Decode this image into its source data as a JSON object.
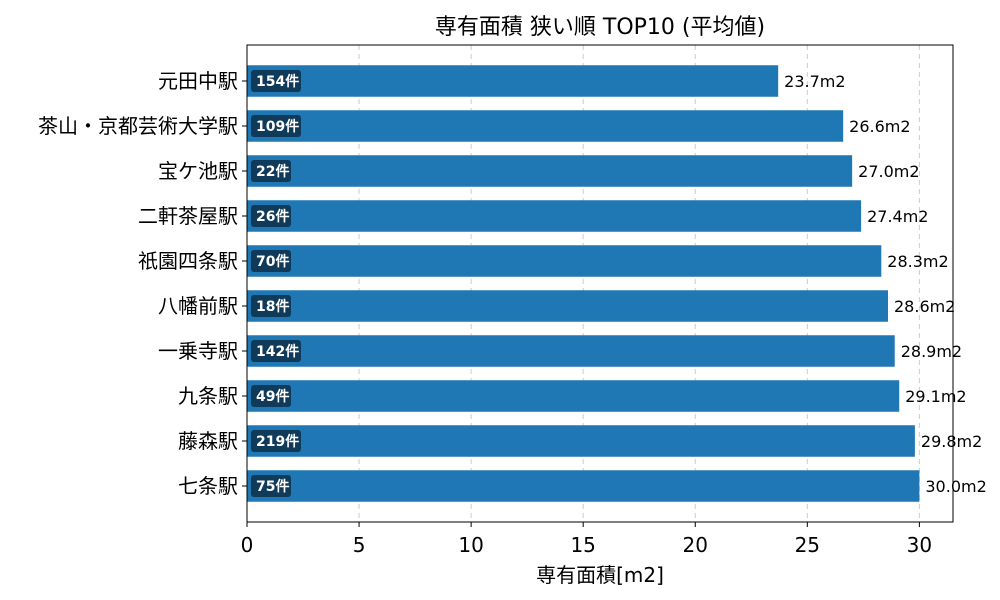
{
  "chart_data": {
    "type": "bar",
    "orientation": "horizontal",
    "title": "専有面積 狭い順 TOP10 (平均値)",
    "xlabel": "専有面積[m2]",
    "ylabel": "",
    "xlim": [
      0,
      31.5
    ],
    "xticks": [
      0,
      5,
      10,
      15,
      20,
      25,
      30
    ],
    "grid": "x-dashed",
    "categories": [
      "元田中駅",
      "茶山・京都芸術大学駅",
      "宝ケ池駅",
      "二軒茶屋駅",
      "祇園四条駅",
      "八幡前駅",
      "一乗寺駅",
      "九条駅",
      "藤森駅",
      "七条駅"
    ],
    "values": [
      23.7,
      26.6,
      27.0,
      27.4,
      28.3,
      28.6,
      28.9,
      29.1,
      29.8,
      30.0
    ],
    "value_labels": [
      "23.7m2",
      "26.6m2",
      "27.0m2",
      "27.4m2",
      "28.3m2",
      "28.6m2",
      "28.9m2",
      "29.1m2",
      "29.8m2",
      "30.0m2"
    ],
    "counts": [
      "154件",
      "109件",
      "22件",
      "26件",
      "70件",
      "18件",
      "142件",
      "49件",
      "219件",
      "75件"
    ],
    "bar_color": "#1f77b4",
    "count_badge_color": "#0f3a5a"
  }
}
